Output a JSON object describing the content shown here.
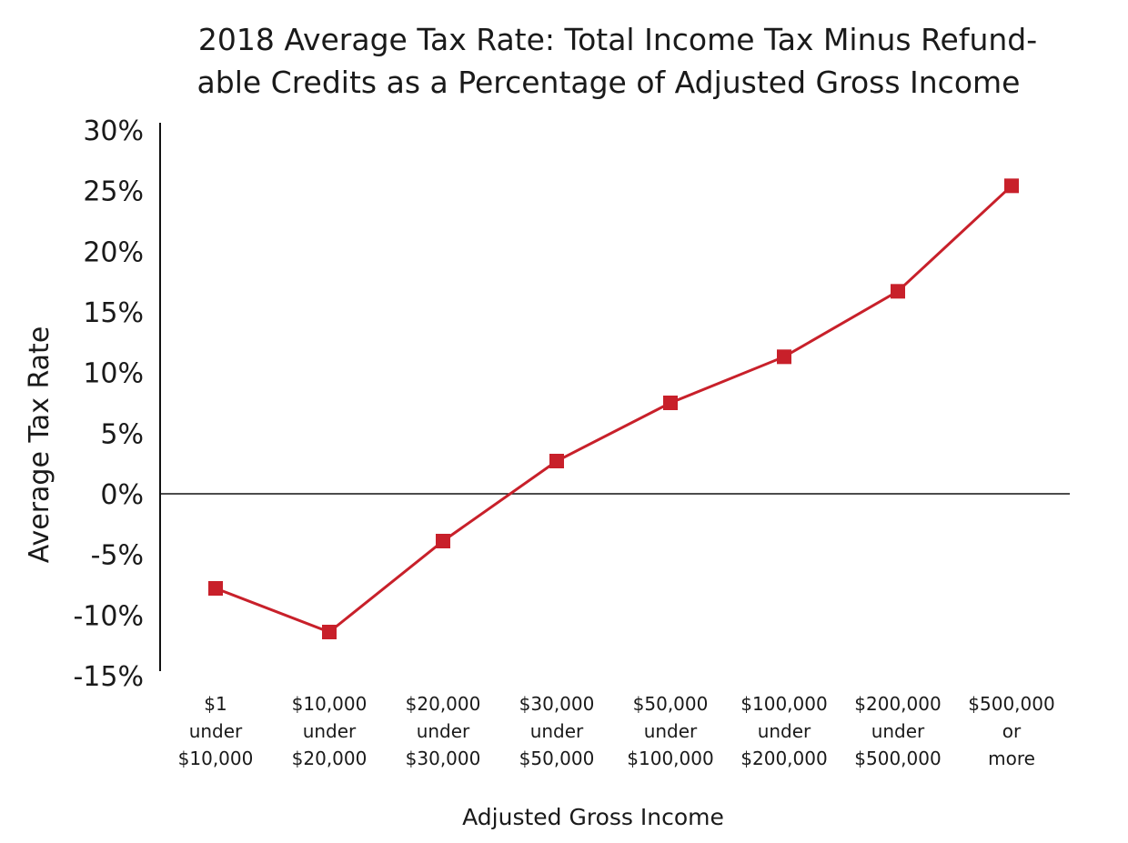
{
  "chart_data": {
    "type": "line",
    "title_lines": [
      "2018 Average Tax Rate: Total Income Tax Minus  Refund-",
      "able Credits as a Percentage of Adjusted Gross Income"
    ],
    "xlabel": "Adjusted Gross Income",
    "ylabel": "Average Tax Rate",
    "ylim": [
      -15,
      30
    ],
    "ytick_values": [
      30,
      25,
      20,
      15,
      10,
      5,
      0,
      -5,
      -10,
      -15
    ],
    "ytick_labels": [
      "30%",
      "25%",
      "20%",
      "15%",
      "10%",
      "5%",
      "0%",
      "-5%",
      "-10%",
      "-15%"
    ],
    "categories": [
      [
        "$1",
        "under",
        "$10,000"
      ],
      [
        "$10,000",
        "under",
        "$20,000"
      ],
      [
        "$20,000",
        "under",
        "$30,000"
      ],
      [
        "$30,000",
        "under",
        "$50,000"
      ],
      [
        "$50,000",
        "under",
        "$100,000"
      ],
      [
        "$100,000",
        "under",
        "$200,000"
      ],
      [
        "$200,000",
        "under",
        "$500,000"
      ],
      [
        "$500,000",
        "or",
        "more"
      ]
    ],
    "series": [
      {
        "values": [
          -7.8,
          -11.4,
          -3.9,
          2.7,
          7.5,
          11.3,
          16.7,
          25.4
        ]
      }
    ],
    "zero_line": true,
    "grid": false,
    "legend": "none",
    "colors": {
      "series": "#c8202a",
      "axis": "#111111"
    }
  }
}
